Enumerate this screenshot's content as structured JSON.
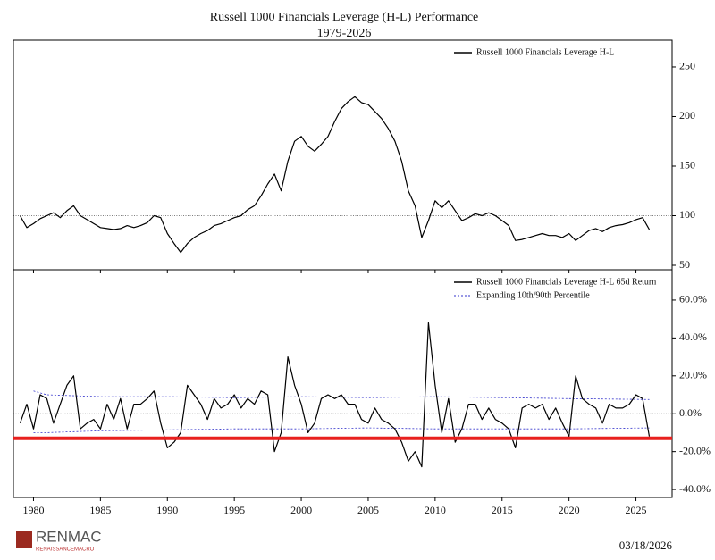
{
  "chart_data": [
    {
      "type": "line",
      "title": "Russell 1000 Financials Leverage (H-L) Performance",
      "subtitle": "1979-2026",
      "x": [
        1979,
        1979.5,
        1980,
        1980.5,
        1981,
        1981.5,
        1982,
        1982.5,
        1983,
        1983.5,
        1984,
        1984.5,
        1985,
        1985.5,
        1986,
        1986.5,
        1987,
        1987.5,
        1988,
        1988.5,
        1989,
        1989.5,
        1990,
        1990.5,
        1991,
        1991.5,
        1992,
        1992.5,
        1993,
        1993.5,
        1994,
        1994.5,
        1995,
        1995.5,
        1996,
        1996.5,
        1997,
        1997.5,
        1998,
        1998.5,
        1999,
        1999.5,
        2000,
        2000.5,
        2001,
        2001.5,
        2002,
        2002.5,
        2003,
        2003.5,
        2004,
        2004.5,
        2005,
        2005.5,
        2006,
        2006.5,
        2007,
        2007.5,
        2008,
        2008.5,
        2009,
        2009.5,
        2010,
        2010.5,
        2011,
        2011.5,
        2012,
        2012.5,
        2013,
        2013.5,
        2014,
        2014.5,
        2015,
        2015.5,
        2016,
        2016.5,
        2017,
        2017.5,
        2018,
        2018.5,
        2019,
        2019.5,
        2020,
        2020.5,
        2021,
        2021.5,
        2022,
        2022.5,
        2023,
        2023.5,
        2024,
        2024.5,
        2025,
        2025.5,
        2026
      ],
      "series": [
        {
          "name": "Russell 1000 Financials Leverage H-L",
          "color": "#000000",
          "values": [
            100,
            88,
            92,
            97,
            100,
            103,
            98,
            105,
            110,
            100,
            96,
            92,
            88,
            87,
            86,
            87,
            90,
            88,
            90,
            93,
            100,
            98,
            82,
            72,
            63,
            72,
            78,
            82,
            85,
            90,
            92,
            95,
            98,
            100,
            106,
            110,
            120,
            132,
            142,
            125,
            155,
            175,
            180,
            170,
            165,
            172,
            180,
            195,
            208,
            215,
            220,
            214,
            212,
            205,
            198,
            188,
            175,
            155,
            125,
            110,
            78,
            95,
            115,
            108,
            115,
            105,
            95,
            98,
            102,
            100,
            103,
            100,
            95,
            90,
            75,
            76,
            78,
            80,
            82,
            80,
            80,
            78,
            82,
            75,
            80,
            85,
            87,
            84,
            88,
            90,
            91,
            93,
            96,
            98,
            86
          ]
        }
      ],
      "reference_line": 100,
      "xlim": [
        1978.5,
        2027.7
      ],
      "xticks": [
        1980,
        1985,
        1990,
        1995,
        2000,
        2005,
        2010,
        2015,
        2020,
        2025
      ],
      "ylim": [
        45.5,
        277
      ],
      "yticks": [
        50,
        100,
        150,
        200,
        250
      ]
    },
    {
      "type": "line",
      "x": [
        1979,
        1979.5,
        1980,
        1980.5,
        1981,
        1981.5,
        1982,
        1982.5,
        1983,
        1983.5,
        1984,
        1984.5,
        1985,
        1985.5,
        1986,
        1986.5,
        1987,
        1987.5,
        1988,
        1988.5,
        1989,
        1989.5,
        1990,
        1990.5,
        1991,
        1991.5,
        1992,
        1992.5,
        1993,
        1993.5,
        1994,
        1994.5,
        1995,
        1995.5,
        1996,
        1996.5,
        1997,
        1997.5,
        1998,
        1998.5,
        1999,
        1999.5,
        2000,
        2000.5,
        2001,
        2001.5,
        2002,
        2002.5,
        2003,
        2003.5,
        2004,
        2004.5,
        2005,
        2005.5,
        2006,
        2006.5,
        2007,
        2007.5,
        2008,
        2008.5,
        2009,
        2009.5,
        2010,
        2010.5,
        2011,
        2011.5,
        2012,
        2012.5,
        2013,
        2013.5,
        2014,
        2014.5,
        2015,
        2015.5,
        2016,
        2016.5,
        2017,
        2017.5,
        2018,
        2018.5,
        2019,
        2019.5,
        2020,
        2020.5,
        2021,
        2021.5,
        2022,
        2022.5,
        2023,
        2023.5,
        2024,
        2024.5,
        2025,
        2025.5,
        2026
      ],
      "series": [
        {
          "name": "Russell 1000 Financials Leverage H-L 65d Return",
          "color": "#000000",
          "values": [
            -5,
            5,
            -8,
            10,
            8,
            -5,
            5,
            15,
            20,
            -8,
            -5,
            -3,
            -8,
            5,
            -3,
            8,
            -8,
            5,
            5,
            8,
            12,
            -5,
            -18,
            -15,
            -10,
            15,
            10,
            5,
            -3,
            8,
            3,
            5,
            10,
            3,
            8,
            5,
            12,
            10,
            -20,
            -10,
            30,
            15,
            5,
            -10,
            -5,
            8,
            10,
            8,
            10,
            5,
            5,
            -3,
            -5,
            3,
            -3,
            -5,
            -8,
            -15,
            -25,
            -20,
            -28,
            48,
            15,
            -10,
            8,
            -15,
            -8,
            5,
            5,
            -3,
            3,
            -3,
            -5,
            -8,
            -18,
            3,
            5,
            3,
            5,
            -3,
            3,
            -5,
            -12,
            20,
            8,
            5,
            3,
            -5,
            5,
            3,
            3,
            5,
            10,
            8,
            -12
          ]
        }
      ],
      "band": {
        "name": "Expanding 10th/90th Percentile",
        "color": "#3333cc",
        "x": [
          1980,
          1981,
          1985,
          1990,
          1995,
          2000,
          2005,
          2010,
          2015,
          2020,
          2026
        ],
        "upper": [
          12,
          10,
          9,
          9,
          8.5,
          9,
          8.5,
          9,
          8.5,
          8,
          7.5
        ],
        "lower": [
          -10,
          -10,
          -9,
          -8.5,
          -8,
          -8,
          -7.5,
          -8,
          -8,
          -8,
          -7.5
        ]
      },
      "reference_line": 0,
      "threshold": {
        "value": -13,
        "color": "#e8201e"
      },
      "xlim": [
        1978.5,
        2027.7
      ],
      "xticks": [
        1980,
        1985,
        1990,
        1995,
        2000,
        2005,
        2010,
        2015,
        2020,
        2025
      ],
      "ylim": [
        -44.2,
        76
      ],
      "yticks": [
        {
          "value": -40,
          "label": "-40.0%"
        },
        {
          "value": -20,
          "label": "-20.0%"
        },
        {
          "value": 0,
          "label": "0.0%"
        },
        {
          "value": 20,
          "label": "20.0%"
        },
        {
          "value": 40,
          "label": "40.0%"
        },
        {
          "value": 60,
          "label": "60.0%"
        }
      ]
    }
  ],
  "logo": {
    "name": "RENMAC",
    "tagline": "RENAISSANCEMACRO"
  },
  "date": "03/18/2026"
}
